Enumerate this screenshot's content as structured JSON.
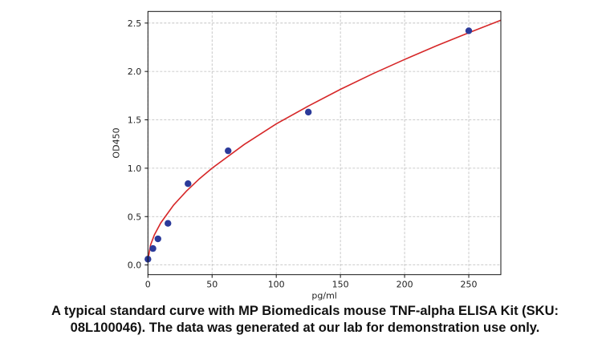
{
  "chart_data": {
    "type": "scatter",
    "title": "",
    "xlabel": "pg/ml",
    "ylabel": "OD450",
    "xlim": [
      0,
      275
    ],
    "ylim": [
      -0.1,
      2.62
    ],
    "xticks": [
      0,
      50,
      100,
      150,
      200,
      250
    ],
    "yticks": [
      0.0,
      0.5,
      1.0,
      1.5,
      2.0,
      2.5
    ],
    "xtick_labels": [
      "0",
      "50",
      "100",
      "150",
      "200",
      "250"
    ],
    "ytick_labels": [
      "0.0",
      "0.5",
      "1.0",
      "1.5",
      "2.0",
      "2.5"
    ],
    "grid": true,
    "series": [
      {
        "type": "scatter",
        "color": "#2b3a9a",
        "x": [
          0,
          3.9,
          7.8,
          15.6,
          31.25,
          62.5,
          125,
          250
        ],
        "y": [
          0.06,
          0.17,
          0.27,
          0.43,
          0.84,
          1.18,
          1.58,
          2.42
        ]
      },
      {
        "type": "line",
        "color": "#d62728",
        "x": [
          0,
          2,
          5,
          10,
          20,
          30,
          40,
          50,
          75,
          100,
          125,
          150,
          175,
          200,
          225,
          250,
          275
        ],
        "y": [
          0.05,
          0.206,
          0.311,
          0.435,
          0.619,
          0.764,
          0.89,
          1.0,
          1.245,
          1.458,
          1.643,
          1.815,
          1.975,
          2.124,
          2.266,
          2.4,
          2.53
        ]
      }
    ]
  },
  "caption": {
    "line1": "A typical standard curve with MP Biomedicals mouse TNF-alpha ELISA Kit (SKU:",
    "line2": "08L100046). The data was generated at our lab for demonstration use only."
  }
}
